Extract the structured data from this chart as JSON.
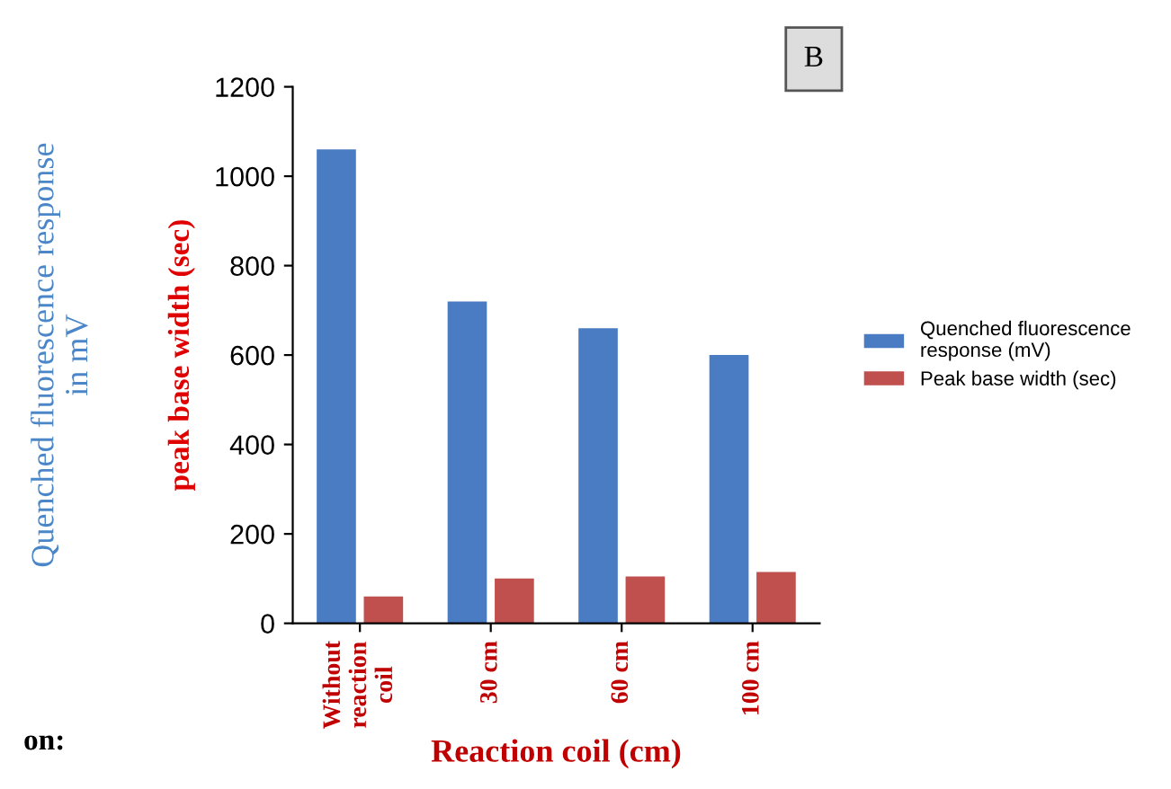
{
  "chart_data": {
    "type": "bar",
    "xlabel": "Reaction coil (cm)",
    "ylabel": "Quenched fluorescence response\nin mV",
    "categories": [
      "Without\nreaction\ncoil",
      "30 cm",
      "60 cm",
      "100 cm"
    ],
    "series": [
      {
        "name": "Quenched fluorescence\nresponse (mV)",
        "color": "#4a7cc4",
        "values": [
          1060,
          720,
          660,
          600
        ]
      },
      {
        "name": "Peak base width (sec)",
        "color": "#c0504d",
        "values": [
          60,
          100,
          105,
          115
        ]
      }
    ],
    "ylim": [
      0,
      1200
    ],
    "yticks": [
      0,
      200,
      400,
      600,
      800,
      1000,
      1200
    ],
    "grid": false,
    "legend": "right",
    "annotations": [
      "B",
      "peak base width (sec)",
      "on:"
    ]
  }
}
